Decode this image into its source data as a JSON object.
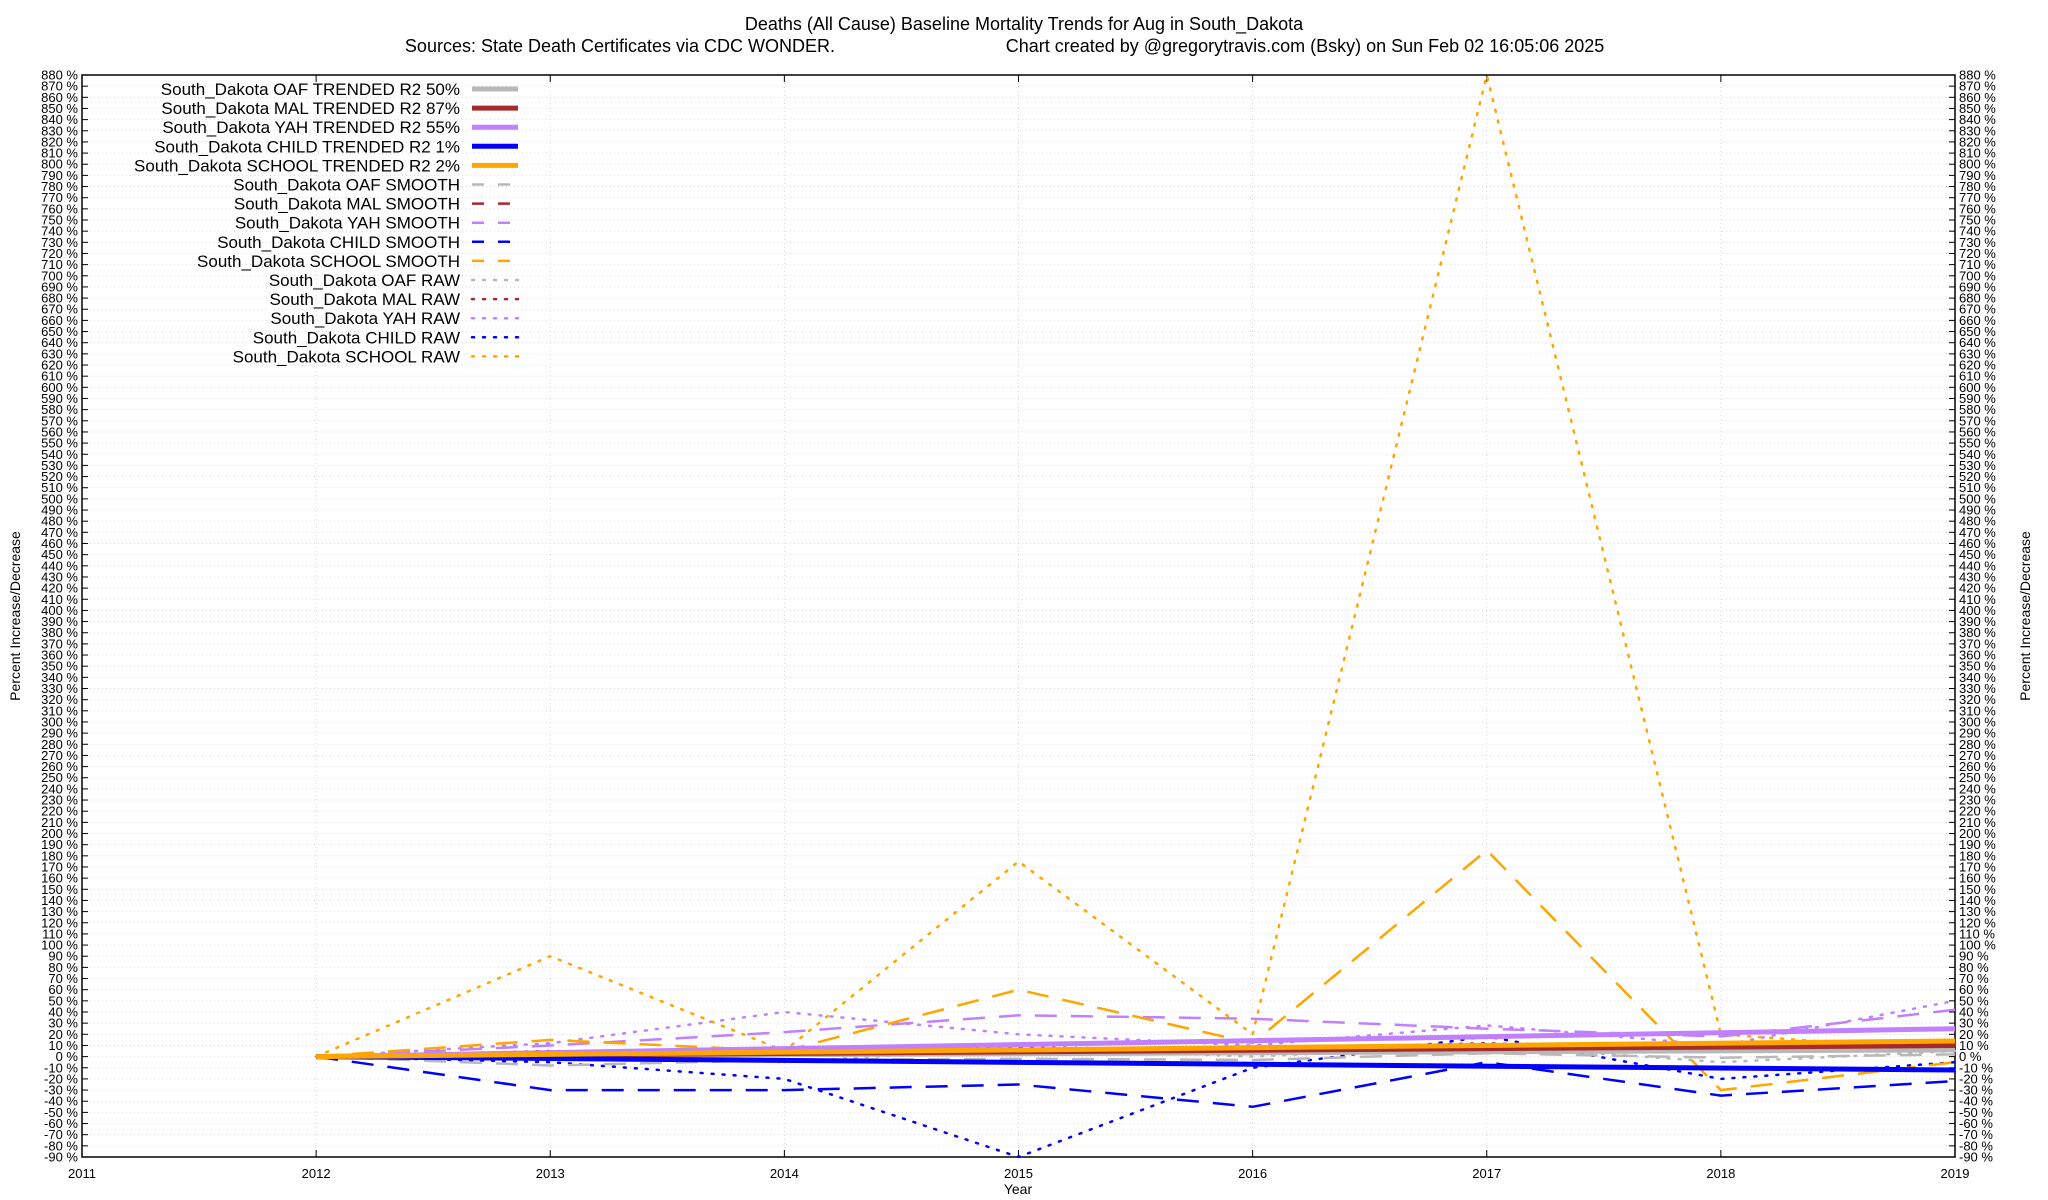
{
  "chart_data": {
    "type": "line",
    "title": "Deaths (All Cause)  Baseline Mortality Trends for Aug in South_Dakota",
    "subtitle_left": "Sources: State Death Certificates via CDC WONDER.",
    "subtitle_right": "Chart created by @gregorytravis.com (Bsky) on Sun Feb 02 16:05:06 2025",
    "xlabel": "Year",
    "ylabel_left": "Percent Increase/Decrease",
    "ylabel_right": "Percent Increase/Decrease",
    "xlim": [
      2011,
      2019
    ],
    "ylim": [
      -90,
      880
    ],
    "x_ticks": [
      "2011",
      "2012",
      "2013",
      "2014",
      "2015",
      "2016",
      "2017",
      "2018",
      "2019"
    ],
    "y_tick_step": 10,
    "y_tick_suffix": " %",
    "grid": true,
    "legend_position": "top-left",
    "series": [
      {
        "name": "South_Dakota OAF TRENDED R2  50%",
        "color": "#b8b8b8",
        "style": "solid",
        "width": 5,
        "x": [
          2012,
          2019
        ],
        "y": [
          0,
          6
        ]
      },
      {
        "name": "South_Dakota MAL TRENDED R2  87%",
        "color": "#a52a2a",
        "style": "solid",
        "width": 5,
        "x": [
          2012,
          2019
        ],
        "y": [
          0,
          10
        ]
      },
      {
        "name": "South_Dakota YAH TRENDED R2  55%",
        "color": "#c080ff",
        "style": "solid",
        "width": 5,
        "x": [
          2012,
          2019
        ],
        "y": [
          0,
          25
        ]
      },
      {
        "name": "South_Dakota CHILD TRENDED R2   1%",
        "color": "#0000ff",
        "style": "solid",
        "width": 5,
        "x": [
          2012,
          2019
        ],
        "y": [
          0,
          -12
        ]
      },
      {
        "name": "South_Dakota SCHOOL TRENDED R2   2%",
        "color": "#ffa500",
        "style": "solid",
        "width": 5,
        "x": [
          2012,
          2019
        ],
        "y": [
          0,
          14
        ]
      },
      {
        "name": "South_Dakota OAF SMOOTH",
        "color": "#b8b8b8",
        "style": "dashed",
        "width": 2.5,
        "x": [
          2012,
          2013,
          2014,
          2015,
          2016,
          2017,
          2018,
          2019
        ],
        "y": [
          0,
          -8,
          -3,
          -2,
          -3,
          3,
          -1,
          2
        ]
      },
      {
        "name": "South_Dakota MAL SMOOTH",
        "color": "#a52a2a",
        "style": "dashed",
        "width": 2.5,
        "x": [
          2012,
          2013,
          2014,
          2015,
          2016,
          2017,
          2018,
          2019
        ],
        "y": [
          0,
          3,
          4,
          5,
          6,
          10,
          9,
          11
        ]
      },
      {
        "name": "South_Dakota YAH SMOOTH",
        "color": "#c080ff",
        "style": "dashed",
        "width": 2.5,
        "x": [
          2012,
          2013,
          2014,
          2015,
          2016,
          2017,
          2018,
          2019
        ],
        "y": [
          0,
          10,
          22,
          37,
          34,
          25,
          18,
          42
        ]
      },
      {
        "name": "South_Dakota CHILD SMOOTH",
        "color": "#0000ff",
        "style": "dashed",
        "width": 2.5,
        "x": [
          2012,
          2013,
          2014,
          2015,
          2016,
          2017,
          2018,
          2019
        ],
        "y": [
          0,
          -30,
          -30,
          -25,
          -45,
          -5,
          -35,
          -22
        ]
      },
      {
        "name": "South_Dakota SCHOOL SMOOTH",
        "color": "#ffa500",
        "style": "dashed",
        "width": 2.5,
        "x": [
          2012,
          2013,
          2014,
          2015,
          2016,
          2017,
          2018,
          2019
        ],
        "y": [
          0,
          15,
          5,
          60,
          12,
          185,
          -30,
          -5
        ]
      },
      {
        "name": "South_Dakota OAF RAW",
        "color": "#b8b8b8",
        "style": "dotted",
        "width": 2.5,
        "x": [
          2012,
          2013,
          2014,
          2015,
          2016,
          2017,
          2018,
          2019
        ],
        "y": [
          0,
          3,
          -5,
          8,
          0,
          10,
          -5,
          5
        ]
      },
      {
        "name": "South_Dakota MAL RAW",
        "color": "#a52a2a",
        "style": "dotted",
        "width": 2.5,
        "x": [
          2012,
          2013,
          2014,
          2015,
          2016,
          2017,
          2018,
          2019
        ],
        "y": [
          0,
          5,
          3,
          8,
          7,
          12,
          5,
          12
        ]
      },
      {
        "name": "South_Dakota YAH RAW",
        "color": "#c080ff",
        "style": "dotted",
        "width": 2.5,
        "x": [
          2012,
          2013,
          2014,
          2015,
          2016,
          2017,
          2018,
          2019
        ],
        "y": [
          0,
          12,
          40,
          20,
          10,
          28,
          10,
          50
        ]
      },
      {
        "name": "South_Dakota CHILD RAW",
        "color": "#0000ff",
        "style": "dotted",
        "width": 2.5,
        "x": [
          2012,
          2013,
          2014,
          2015,
          2016,
          2017,
          2018,
          2019
        ],
        "y": [
          0,
          -5,
          -20,
          -90,
          -10,
          18,
          -20,
          -5
        ]
      },
      {
        "name": "South_Dakota SCHOOL RAW",
        "color": "#ffa500",
        "style": "dotted",
        "width": 2.5,
        "x": [
          2012,
          2013,
          2014,
          2015,
          2016,
          2017,
          2018,
          2019
        ],
        "y": [
          0,
          90,
          5,
          175,
          20,
          880,
          20,
          5
        ]
      }
    ]
  }
}
